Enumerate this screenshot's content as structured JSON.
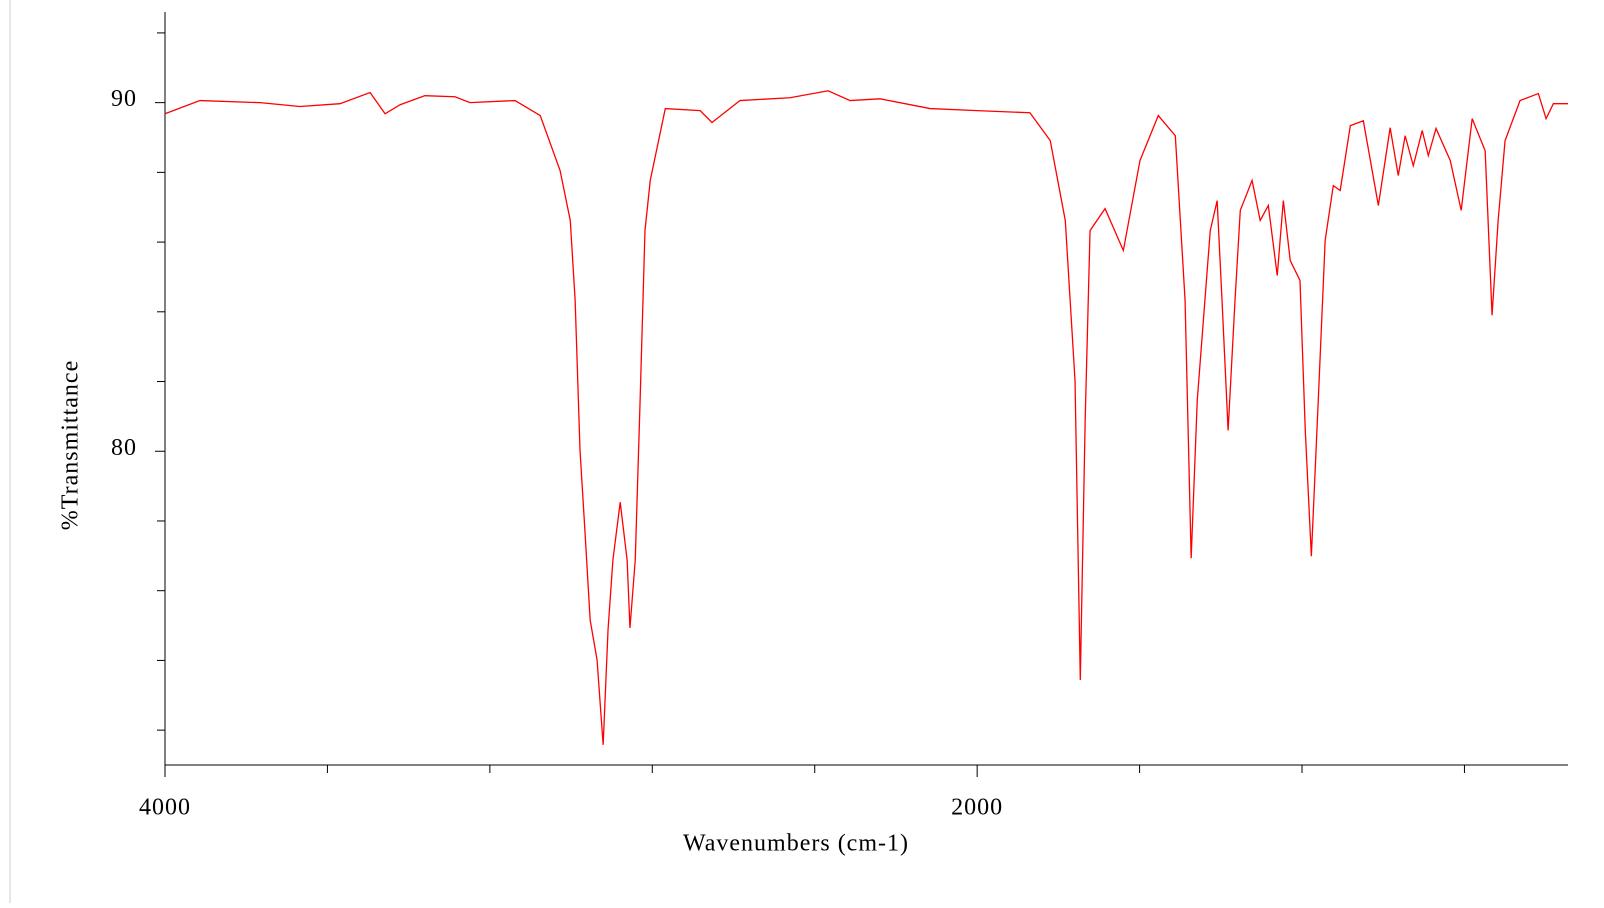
{
  "chart_data": {
    "type": "line",
    "xlabel": "Wavenumbers (cm-1)",
    "ylabel": "%Transmittance",
    "xlim": [
      4000,
      545
    ],
    "ylim": [
      71,
      92.6
    ],
    "xticks": [
      4000,
      2000
    ],
    "xminorticks": [
      3600,
      3200,
      2800,
      2400,
      1600,
      1200,
      800
    ],
    "yticks": [
      90,
      80
    ],
    "yminorticks": [
      92,
      88,
      86,
      84,
      82,
      78,
      76,
      74,
      72
    ],
    "series": [
      {
        "color": "#ff0000",
        "x": [
          4000,
          3914,
          3766,
          3668,
          3569,
          3495,
          3458,
          3421,
          3360,
          3286,
          3249,
          3138,
          3076,
          3027,
          3002,
          2990,
          2978,
          2966,
          2953,
          2936,
          2921,
          2909,
          2897,
          2879,
          2862,
          2855,
          2842,
          2830,
          2818,
          2805,
          2768,
          2682,
          2653,
          2584,
          2461,
          2367,
          2313,
          2239,
          2116,
          2000,
          1870,
          1820,
          1783,
          1759,
          1746,
          1734,
          1722,
          1685,
          1640,
          1599,
          1554,
          1512,
          1488,
          1473,
          1458,
          1426,
          1409,
          1397,
          1382,
          1365,
          1352,
          1323,
          1303,
          1283,
          1261,
          1246,
          1229,
          1205,
          1192,
          1177,
          1160,
          1143,
          1123,
          1106,
          1081,
          1049,
          1012,
          983,
          963,
          946,
          926,
          904,
          889,
          870,
          835,
          808,
          781,
          749,
          732,
          717,
          700,
          663,
          618,
          599,
          581,
          545
        ],
        "values": [
          89.68,
          90.06,
          90.0,
          89.89,
          89.97,
          90.29,
          89.68,
          89.94,
          90.2,
          90.17,
          90.0,
          90.06,
          89.63,
          88.05,
          86.62,
          84.33,
          80.03,
          77.74,
          75.16,
          74.01,
          71.58,
          74.87,
          76.88,
          78.54,
          76.88,
          74.93,
          76.88,
          81.46,
          86.33,
          87.77,
          89.83,
          89.77,
          89.43,
          90.06,
          90.14,
          90.34,
          90.06,
          90.11,
          89.83,
          89.77,
          89.71,
          88.91,
          86.62,
          82.03,
          73.44,
          80.89,
          86.33,
          86.96,
          85.76,
          88.34,
          89.63,
          89.05,
          84.33,
          76.93,
          81.46,
          86.33,
          87.19,
          84.33,
          80.6,
          84.33,
          86.91,
          87.77,
          86.62,
          87.05,
          85.04,
          87.19,
          85.47,
          84.9,
          80.6,
          76.99,
          81.46,
          86.05,
          87.62,
          87.48,
          89.34,
          89.48,
          87.05,
          89.28,
          87.91,
          89.05,
          88.19,
          89.2,
          88.48,
          89.26,
          88.34,
          86.91,
          89.54,
          88.62,
          83.9,
          86.62,
          88.91,
          90.06,
          90.26,
          89.54,
          89.97,
          89.97
        ]
      }
    ]
  }
}
